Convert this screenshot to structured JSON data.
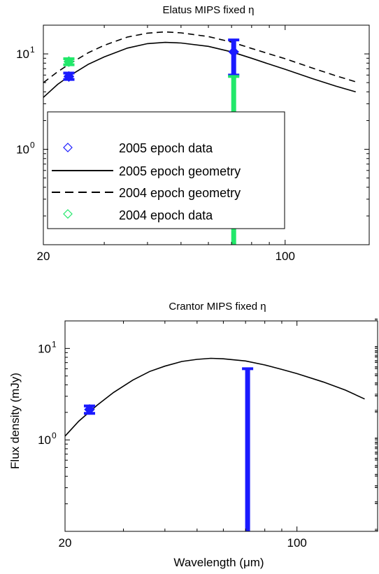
{
  "chart_data": [
    {
      "type": "line",
      "title": "Elatus MIPS fixed η",
      "xlabel": "",
      "ylabel": "",
      "x_scale": "log",
      "y_scale": "log",
      "xlim": [
        20,
        175
      ],
      "ylim": [
        0.1,
        20
      ],
      "x_ticks": [
        {
          "value": 20,
          "label": "20"
        },
        {
          "value": 100,
          "label": "100"
        }
      ],
      "y_ticks": [
        {
          "value": 1,
          "label": "10",
          "exp": "0"
        },
        {
          "value": 10,
          "label": "10",
          "exp": "1"
        }
      ],
      "grid": false,
      "legend_position": "lower-left",
      "legend": [
        {
          "label": "2005 epoch data",
          "marker": "diamond",
          "color": "#1a1aff"
        },
        {
          "label": "2005 epoch geometry",
          "line": "solid",
          "color": "#000000"
        },
        {
          "label": "2004 epoch geometry",
          "line": "dashed",
          "color": "#000000"
        },
        {
          "label": "2004 epoch data",
          "marker": "diamond",
          "color": "#22e86a"
        }
      ],
      "series": [
        {
          "name": "2005 epoch geometry",
          "style": "solid",
          "color": "#000000",
          "x": [
            20,
            22,
            24,
            27,
            30,
            35,
            40,
            45,
            50,
            60,
            70,
            80,
            90,
            100,
            120,
            140,
            160
          ],
          "y": [
            3.5,
            4.8,
            6.0,
            7.8,
            9.3,
            11.5,
            12.8,
            13.2,
            13.0,
            12.0,
            10.5,
            9.0,
            7.8,
            6.9,
            5.5,
            4.6,
            4.0
          ]
        },
        {
          "name": "2004 epoch geometry",
          "style": "dashed",
          "color": "#000000",
          "x": [
            20,
            22,
            24,
            27,
            30,
            35,
            40,
            45,
            50,
            60,
            70,
            80,
            90,
            100,
            120,
            140,
            160
          ],
          "y": [
            5.0,
            6.5,
            8.0,
            10.3,
            12.3,
            15.0,
            16.5,
            17.0,
            16.6,
            15.2,
            13.3,
            11.4,
            10.0,
            8.9,
            7.1,
            5.9,
            5.1
          ]
        },
        {
          "name": "2005 epoch data",
          "type": "errorbar",
          "color": "#1a1aff",
          "points": [
            {
              "x": 23.7,
              "y": 5.8,
              "low": 5.4,
              "high": 6.3
            },
            {
              "x": 71,
              "y": 10.5,
              "low": 6.0,
              "high": 14.0
            }
          ]
        },
        {
          "name": "2004 epoch data",
          "type": "errorbar",
          "color": "#22e86a",
          "points": [
            {
              "x": 23.7,
              "y": 8.3,
              "low": 7.7,
              "high": 8.9
            },
            {
              "x": 71,
              "y": 5.8,
              "low": 0.1,
              "high": 5.8,
              "upper_limit": true
            }
          ]
        }
      ]
    },
    {
      "type": "line",
      "title": "Crantor MIPS fixed η",
      "xlabel": "Wavelength (μm)",
      "ylabel": "Flux density (mJy)",
      "x_scale": "log",
      "y_scale": "log",
      "xlim": [
        20,
        175
      ],
      "ylim": [
        0.1,
        20
      ],
      "x_ticks": [
        {
          "value": 20,
          "label": "20"
        },
        {
          "value": 100,
          "label": "100"
        }
      ],
      "y_ticks": [
        {
          "value": 1,
          "label": "10",
          "exp": "0"
        },
        {
          "value": 10,
          "label": "10",
          "exp": "1"
        }
      ],
      "grid": false,
      "series": [
        {
          "name": "",
          "style": "solid",
          "color": "#000000",
          "x": [
            20,
            22,
            25,
            28,
            32,
            36,
            40,
            45,
            50,
            55,
            60,
            70,
            80,
            90,
            100,
            120,
            140,
            160
          ],
          "y": [
            1.1,
            1.6,
            2.4,
            3.3,
            4.5,
            5.6,
            6.4,
            7.2,
            7.6,
            7.8,
            7.7,
            7.3,
            6.6,
            5.9,
            5.3,
            4.3,
            3.5,
            2.8
          ]
        },
        {
          "name": "",
          "type": "errorbar",
          "color": "#1a1aff",
          "points": [
            {
              "x": 23.7,
              "y": 2.15,
              "low": 1.95,
              "high": 2.35
            },
            {
              "x": 71,
              "y": 6.0,
              "low": 0.1,
              "high": 6.0,
              "upper_limit": true
            }
          ]
        }
      ]
    }
  ]
}
